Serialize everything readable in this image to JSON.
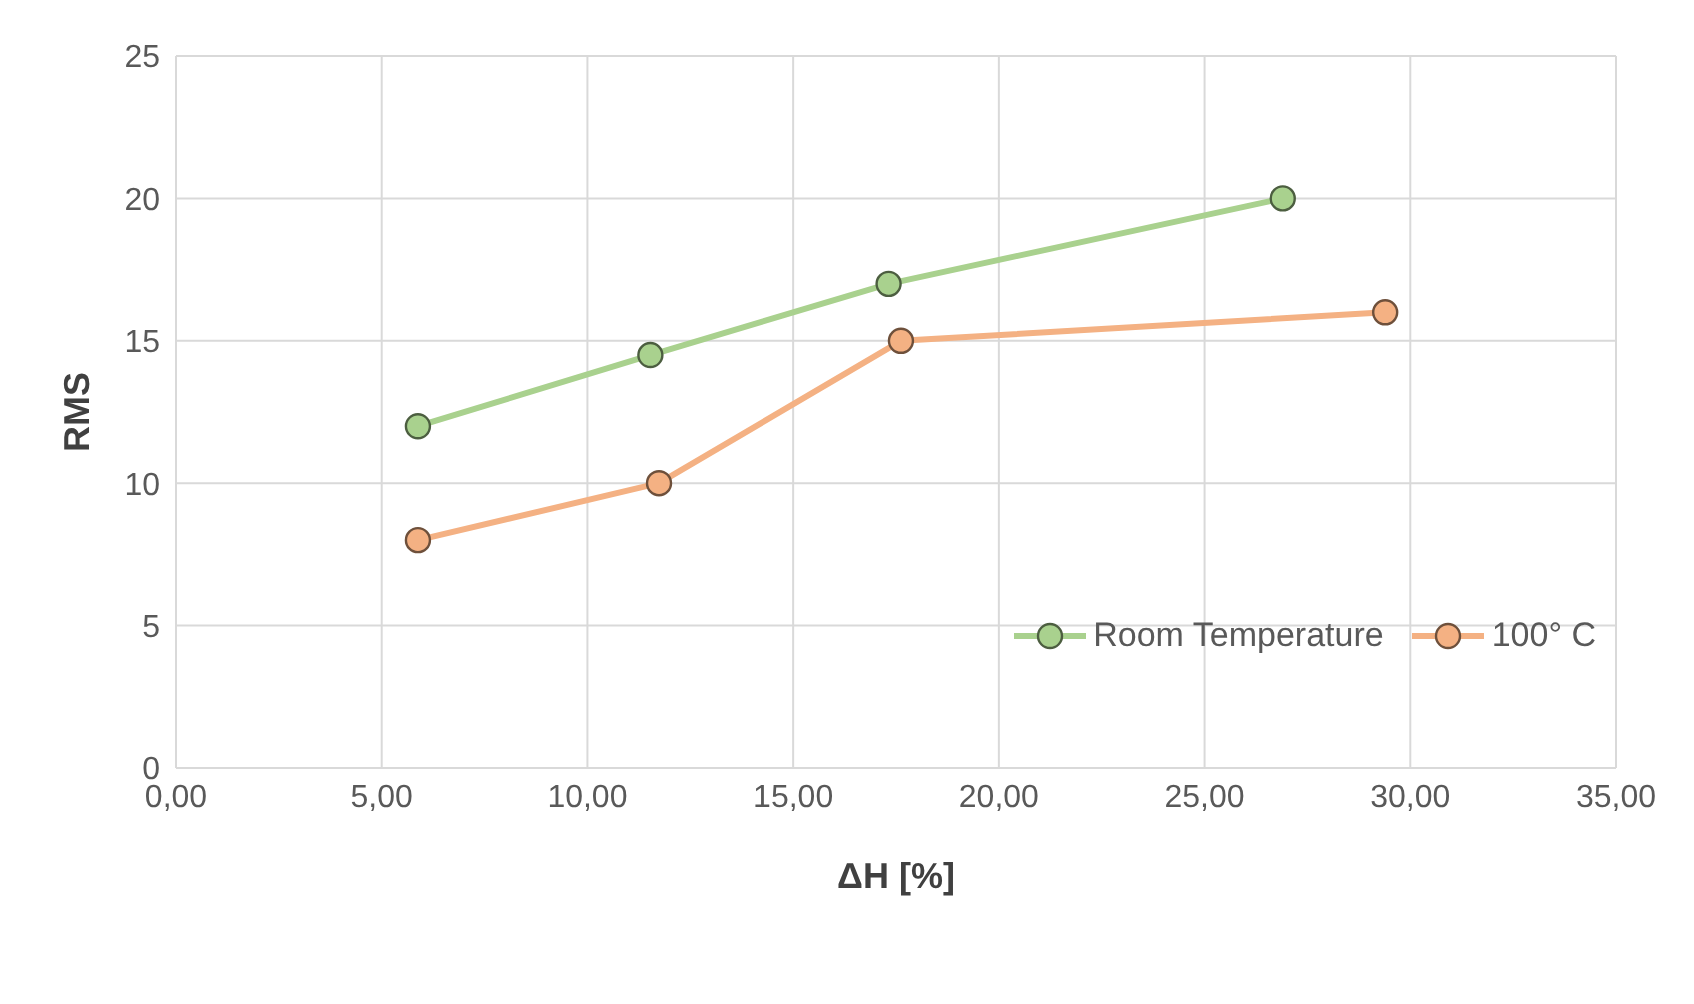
{
  "chart_data": {
    "type": "line",
    "xlabel": "ΔH [%]",
    "ylabel": "RMS",
    "xlim": [
      0,
      35
    ],
    "xticks": [
      {
        "value": 0,
        "label": "0,00"
      },
      {
        "value": 5,
        "label": "5,00"
      },
      {
        "value": 10,
        "label": "10,00"
      },
      {
        "value": 15,
        "label": "15,00"
      },
      {
        "value": 20,
        "label": "20,00"
      },
      {
        "value": 25,
        "label": "25,00"
      },
      {
        "value": 30,
        "label": "30,00"
      },
      {
        "value": 35,
        "label": "35,00"
      }
    ],
    "ylim": [
      0,
      25
    ],
    "yticks": [
      0,
      5,
      10,
      15,
      20,
      25
    ],
    "grid": true,
    "legend": "bottom right",
    "marker": "circle",
    "line_style": "solid",
    "series": [
      {
        "name": "Room Temperature",
        "color": "#a9d18e",
        "x": [
          5.88,
          11.53,
          17.32,
          26.9
        ],
        "values": [
          12,
          14.5,
          17,
          20
        ]
      },
      {
        "name": "100° C",
        "color": "#f4b183",
        "x": [
          5.88,
          11.74,
          17.62,
          29.39
        ],
        "values": [
          8,
          10,
          15,
          16
        ]
      }
    ]
  }
}
